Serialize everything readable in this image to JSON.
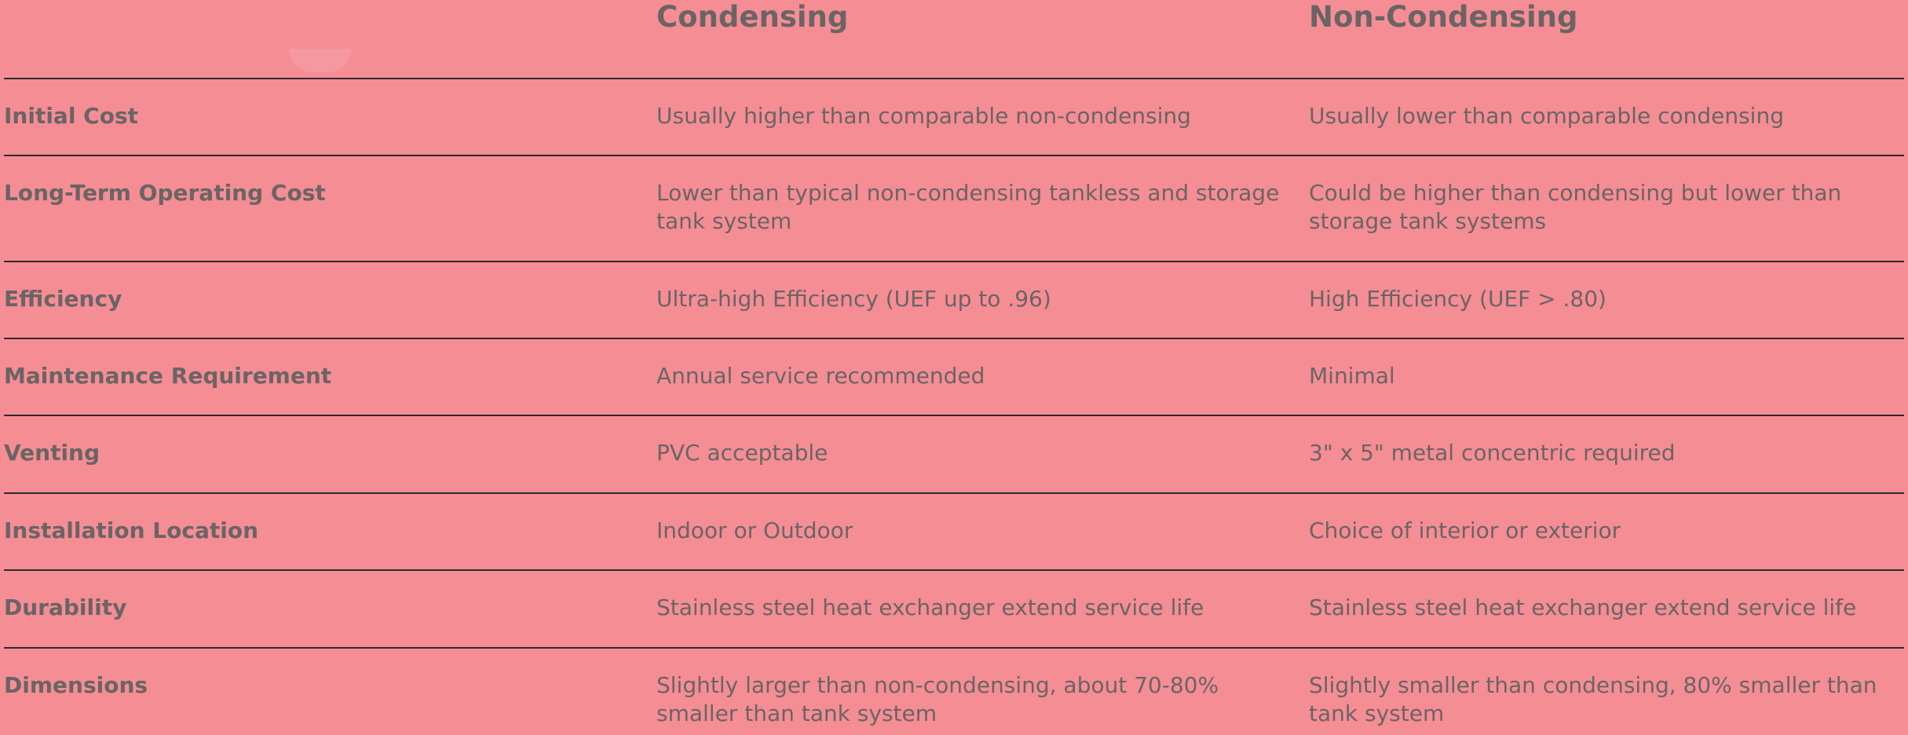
{
  "header": {
    "col1": "",
    "col2": "Condensing",
    "col3": "Non-Condensing"
  },
  "rows": [
    {
      "feature": "Initial Cost",
      "condensing": "Usually higher than comparable non-condensing",
      "non_condensing": "Usually lower than comparable condensing"
    },
    {
      "feature": "Long-Term Operating Cost",
      "condensing": "Lower than typical non-condensing tankless and storage tank system",
      "non_condensing": "Could be higher than condensing but lower than storage tank systems"
    },
    {
      "feature": "Efficiency",
      "condensing": "Ultra-high Efficiency (UEF up to .96)",
      "non_condensing": "High Efficiency (UEF > .80)"
    },
    {
      "feature": "Maintenance Requirement",
      "condensing": "Annual service recommended",
      "non_condensing": "Minimal"
    },
    {
      "feature": "Venting",
      "condensing": "PVC acceptable",
      "non_condensing": "3\" x 5\" metal concentric required"
    },
    {
      "feature": "Installation Location",
      "condensing": "Indoor or Outdoor",
      "non_condensing": "Choice of interior or exterior"
    },
    {
      "feature": "Durability",
      "condensing": "Stainless steel heat exchanger extend service life",
      "non_condensing": "Stainless steel heat exchanger extend service life"
    },
    {
      "feature": "Dimensions",
      "condensing": "Slightly larger than non-condensing, about 70-80% smaller than tank system",
      "non_condensing": "Slightly smaller than condensing, 80% smaller than tank system"
    }
  ]
}
